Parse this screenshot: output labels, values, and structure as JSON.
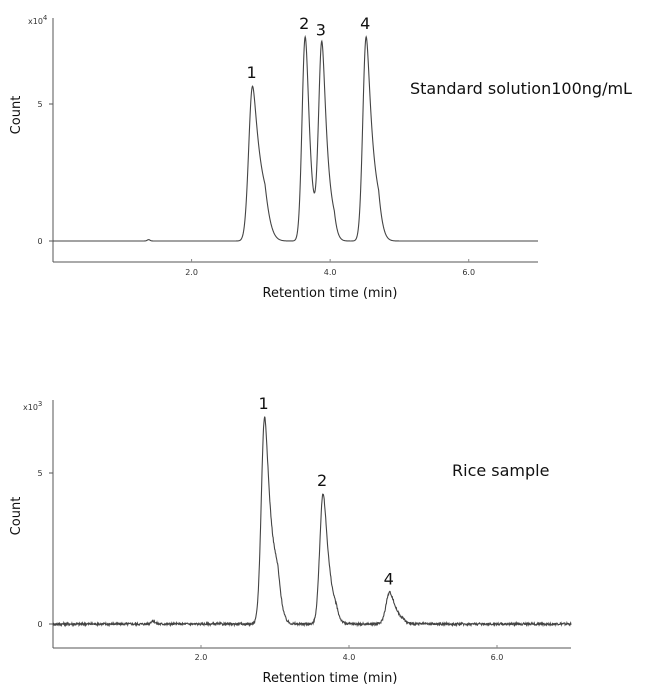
{
  "chart_data": [
    {
      "type": "line",
      "title": "Standard solution100ng/mL",
      "xlabel": "Retention time (min)",
      "ylabel": "Count",
      "y_scale_label": "x10",
      "y_scale_exp": "4",
      "xlim": [
        0,
        7.0
      ],
      "ylim": [
        -1.5,
        10.0
      ],
      "x_ticks": [
        {
          "v": 2.0,
          "label": "2.0"
        },
        {
          "v": 4.0,
          "label": "4.0"
        },
        {
          "v": 6.0,
          "label": "6.0"
        }
      ],
      "y_ticks": [
        {
          "v": 0,
          "label": "0"
        },
        {
          "v": 5,
          "label": "5"
        }
      ],
      "baseline": 0.0,
      "noise": 0.0,
      "peaks": [
        {
          "label": "1",
          "rt": 2.88,
          "height": 5.65,
          "sigma": 0.055,
          "tail": 0.06
        },
        {
          "label": "2",
          "rt": 3.64,
          "height": 7.45,
          "sigma": 0.045,
          "tail": 0.03
        },
        {
          "label": "3",
          "rt": 3.88,
          "height": 7.2,
          "sigma": 0.045,
          "tail": 0.04
        },
        {
          "label": "4",
          "rt": 4.52,
          "height": 7.45,
          "sigma": 0.048,
          "tail": 0.05
        }
      ],
      "extra_bumps": [
        {
          "rt": 1.38,
          "height": 0.05,
          "sigma": 0.02
        }
      ]
    },
    {
      "type": "line",
      "title": "Rice sample",
      "xlabel": "Retention time (min)",
      "ylabel": "Count",
      "y_scale_label": "x10",
      "y_scale_exp": "3",
      "xlim": [
        0,
        7.0
      ],
      "ylim": [
        -1.5,
        10.0
      ],
      "x_ticks": [
        {
          "v": 2.0,
          "label": "2.0"
        },
        {
          "v": 4.0,
          "label": "4.0"
        },
        {
          "v": 6.0,
          "label": "6.0"
        }
      ],
      "y_ticks": [
        {
          "v": 0,
          "label": "0"
        },
        {
          "v": 5,
          "label": "5"
        }
      ],
      "baseline": 0.0,
      "noise": 0.04,
      "peaks": [
        {
          "label": "1",
          "rt": 2.86,
          "height": 6.85,
          "sigma": 0.045,
          "tail": 0.05
        },
        {
          "label": "2",
          "rt": 3.65,
          "height": 4.3,
          "sigma": 0.045,
          "tail": 0.04
        },
        {
          "label": "4",
          "rt": 4.55,
          "height": 1.05,
          "sigma": 0.05,
          "tail": 0.04
        }
      ],
      "extra_bumps": [
        {
          "rt": 1.35,
          "height": 0.1,
          "sigma": 0.03
        },
        {
          "rt": 3.03,
          "height": 0.35,
          "sigma": 0.05
        }
      ]
    }
  ]
}
